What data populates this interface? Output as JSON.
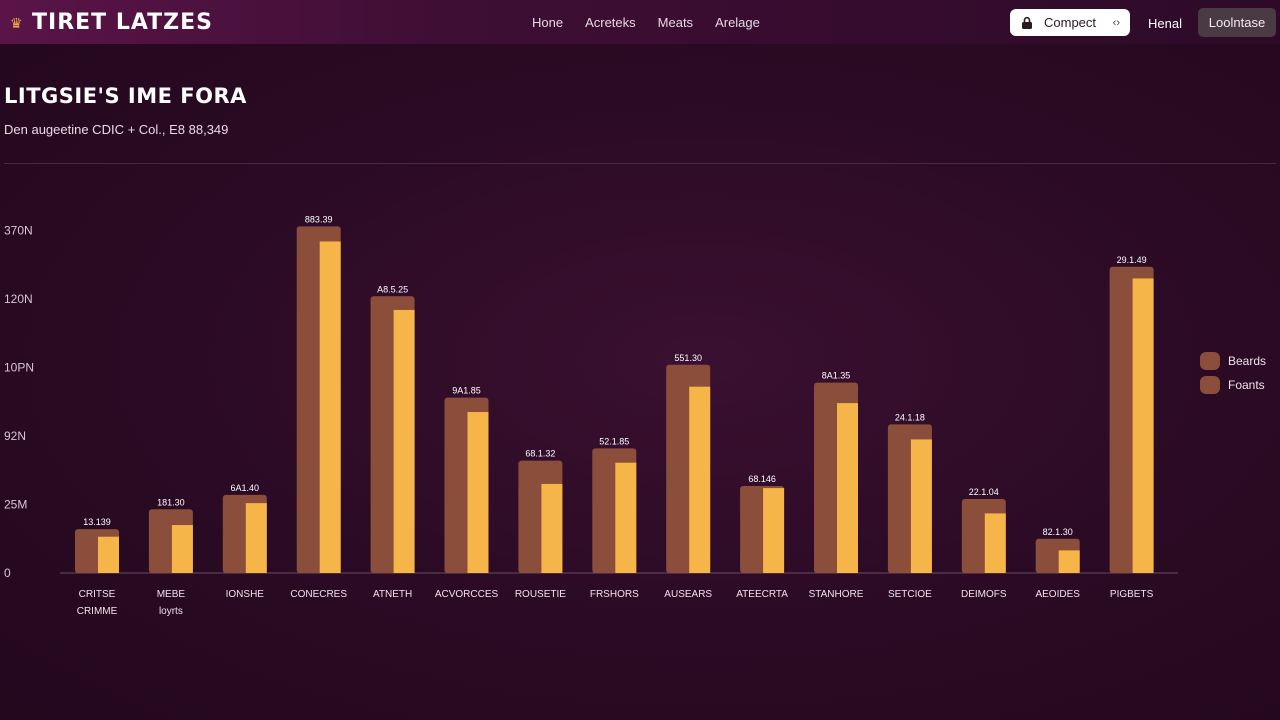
{
  "header": {
    "brand": "TIRET LATZES",
    "brand_icon": "trophy-icon",
    "nav": [
      "Hone",
      "Acreteks",
      "Meats",
      "Arelage"
    ],
    "compact_label": "Compect",
    "compact_icon": "lock-icon",
    "compact_arrows": "‹›",
    "link_label": "Henal",
    "button_label": "Loolntase"
  },
  "page": {
    "title": "LITGSIE'S IME FORA",
    "subtitle": "Den augeetine CDIC + Col., E8 88,349"
  },
  "colors": {
    "series1": "#8a4e3a",
    "series2": "#f5b548",
    "axis": "#6a4a60",
    "text": "#f3e6ee"
  },
  "chart_data": {
    "type": "bar",
    "y_ticks": [
      "0",
      "25M",
      "92N",
      "10PN",
      "120N",
      "370N"
    ],
    "ylim": [
      0,
      5
    ],
    "categories": [
      [
        "CRITSE",
        "CRIMME"
      ],
      [
        "MEBE",
        "loyrts"
      ],
      [
        "IONSHE"
      ],
      [
        "CONECRES"
      ],
      [
        "ATNETH"
      ],
      [
        "ACVORCCES"
      ],
      [
        "ROUSETIE"
      ],
      [
        "FRSHORS"
      ],
      [
        "AUSEARS"
      ],
      [
        "ATEECRTA"
      ],
      [
        "STANHORE"
      ],
      [
        "SETCIOE"
      ],
      [
        "DEIMOFS"
      ],
      [
        "AEOIDES"
      ],
      [
        "PIGBETS"
      ]
    ],
    "data_labels": [
      "13.139",
      "181.30",
      "6A1.40",
      "883.39",
      "A8.5.25",
      "9A1.85",
      "68.1.32",
      "52.1.85",
      "551.30",
      "68.146",
      "8A1.35",
      "24.1.18",
      "22.1.04",
      "82.1.30",
      "29.1.49"
    ],
    "series": [
      {
        "name": "Beards",
        "values": [
          0.64,
          0.93,
          1.14,
          5.06,
          4.04,
          2.56,
          1.64,
          1.82,
          3.04,
          1.27,
          2.78,
          2.17,
          1.08,
          0.5,
          4.47
        ]
      },
      {
        "name": "Foants",
        "values": [
          0.53,
          0.7,
          1.02,
          4.84,
          3.84,
          2.35,
          1.3,
          1.61,
          2.72,
          1.24,
          2.48,
          1.95,
          0.87,
          0.33,
          4.3
        ]
      }
    ],
    "legend_position": "right"
  }
}
